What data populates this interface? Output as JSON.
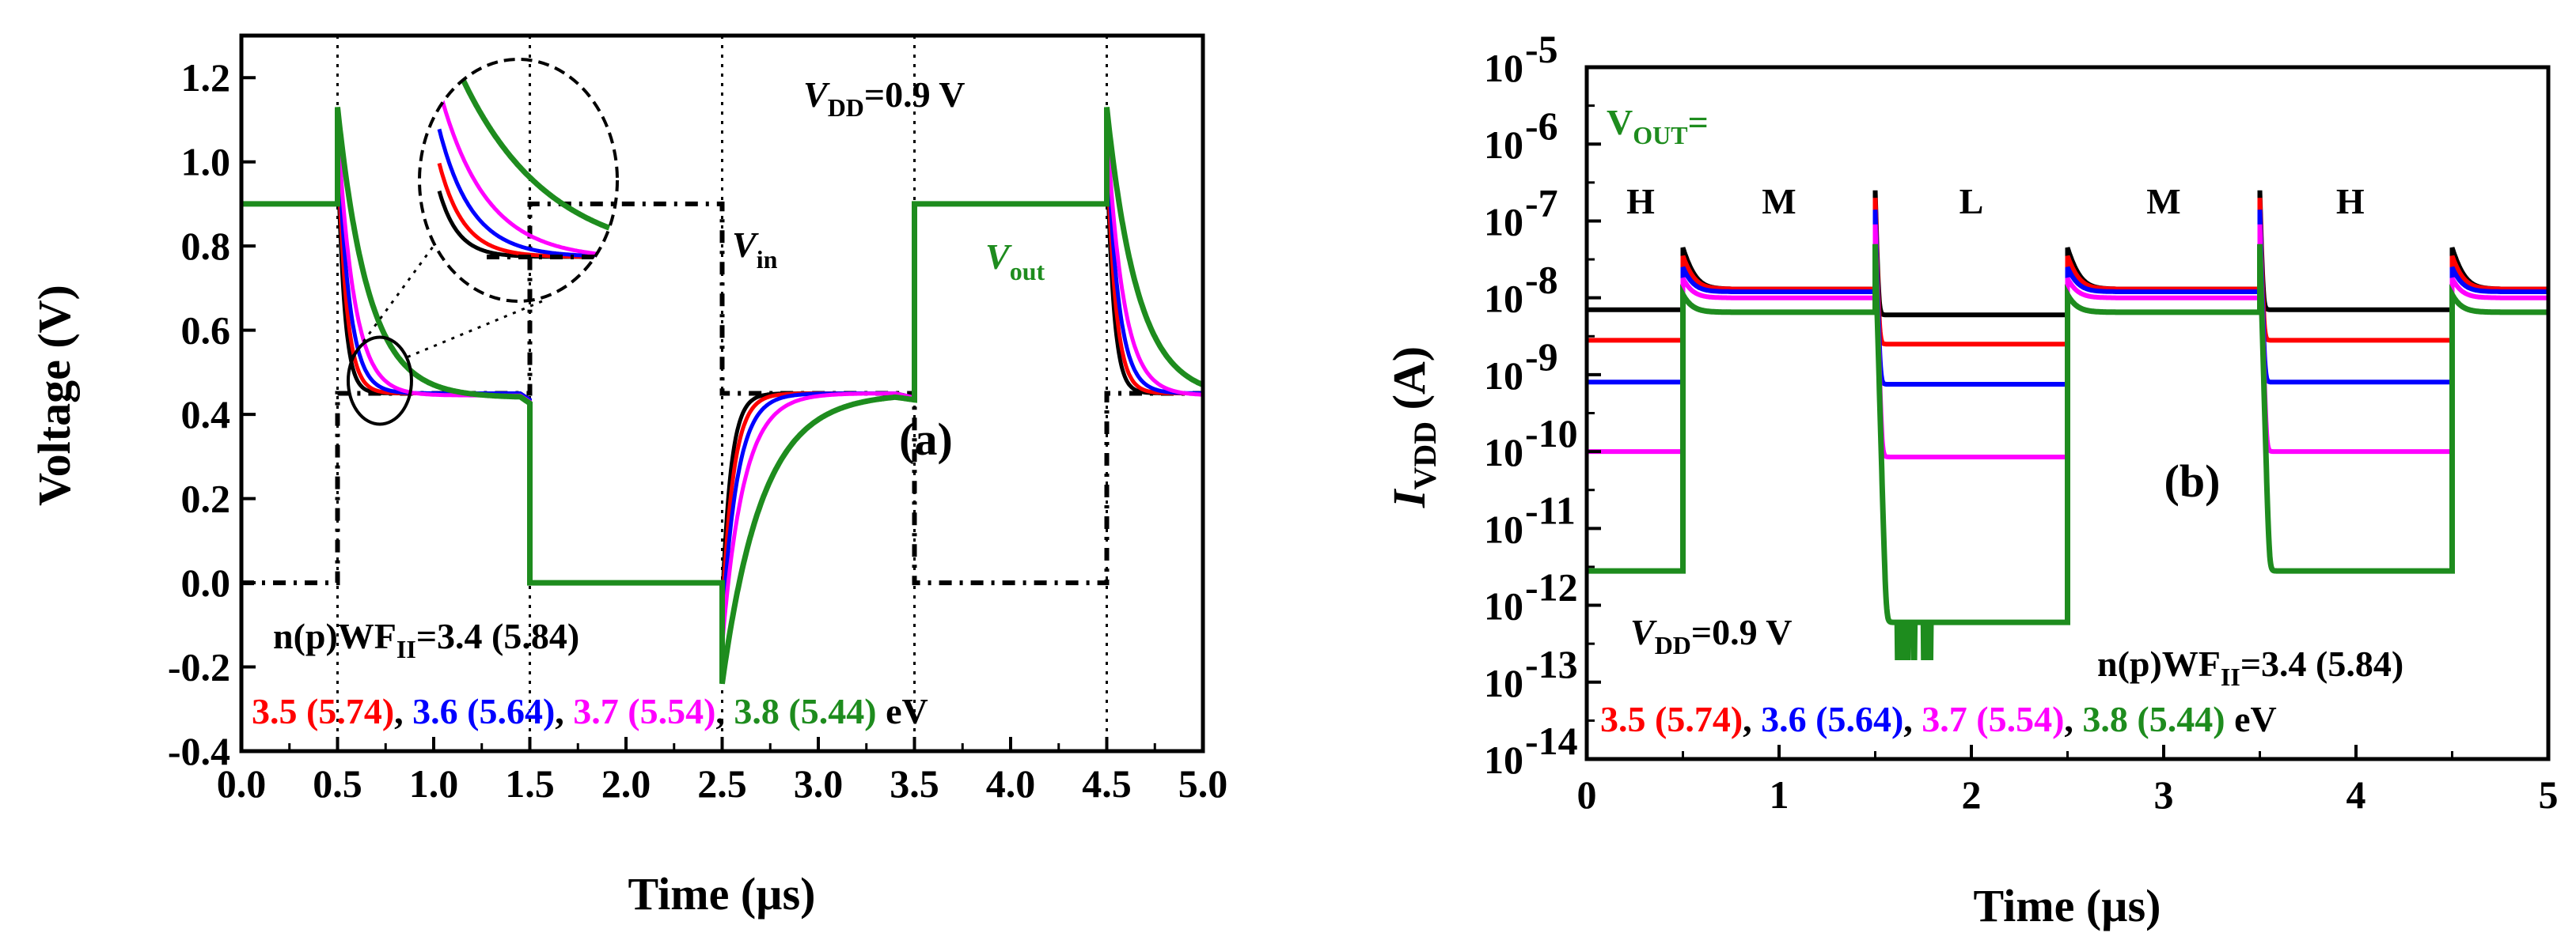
{
  "chart_data": [
    {
      "type": "line",
      "panel_label": "(a)",
      "xlabel": "Time (µs)",
      "ylabel": "Voltage (V)",
      "xlim": [
        0.0,
        5.0
      ],
      "ylim": [
        -0.4,
        1.3
      ],
      "x_ticks": [
        "0.0",
        "0.5",
        "1.0",
        "1.5",
        "2.0",
        "2.5",
        "3.0",
        "3.5",
        "4.0",
        "4.5",
        "5.0"
      ],
      "y_ticks": [
        "-0.4",
        "-0.2",
        "0.0",
        "0.2",
        "0.4",
        "0.6",
        "0.8",
        "1.0",
        "1.2"
      ],
      "annotations": {
        "vdd_main": "V",
        "vdd_sub": "DD",
        "vdd_rest": "=0.9 V",
        "vin_main": "V",
        "vin_sub": "in",
        "vout_main": "V",
        "vout_sub": "out",
        "wf_main": "n(p)WF",
        "wf_sub": "II",
        "wf_rest": "=3.4 (5.84)",
        "legend_red": "3.5 (5.74)",
        "sep1": ", ",
        "legend_blue": "3.6 (5.64)",
        "sep2": ", ",
        "legend_magenta": "3.7 (5.54)",
        "sep3": ", ",
        "legend_green": "3.8 (5.44)",
        "unit": " eV"
      },
      "vin": {
        "name": "Vin",
        "x": [
          0.0,
          0.5,
          0.5,
          1.5,
          1.5,
          2.5,
          2.5,
          3.5,
          3.5,
          4.5,
          4.5,
          5.0
        ],
        "y": [
          0.0,
          0.0,
          0.45,
          0.45,
          0.9,
          0.9,
          0.45,
          0.45,
          0.0,
          0.0,
          0.45,
          0.45
        ]
      },
      "vout_series": [
        {
          "name": "3.4 (5.84)",
          "color": "#000000",
          "peak": 1.03,
          "tau": 0.035,
          "final": 0.45,
          "min": -0.05
        },
        {
          "name": "3.5 (5.74)",
          "color": "#ff0000",
          "peak": 1.05,
          "tau": 0.045,
          "final": 0.45,
          "min": -0.08
        },
        {
          "name": "3.6 (5.64)",
          "color": "#0000ff",
          "peak": 1.07,
          "tau": 0.06,
          "final": 0.45,
          "min": -0.11
        },
        {
          "name": "3.7 (5.54)",
          "color": "#ff00ff",
          "peak": 1.09,
          "tau": 0.085,
          "final": 0.445,
          "min": -0.15
        },
        {
          "name": "3.8 (5.44)",
          "color": "#1e8c1e",
          "peak": 1.13,
          "tau": 0.16,
          "final": 0.44,
          "min": -0.24
        }
      ],
      "vdd": 0.9
    },
    {
      "type": "line",
      "panel_label": "(b)",
      "xlabel": "Time (µs)",
      "ylabel_main": "I",
      "ylabel_sub": "VDD",
      "ylabel_rest": " (A)",
      "yscale": "log",
      "xlim": [
        0,
        5
      ],
      "ylim_exp": [
        -14,
        -5
      ],
      "x_ticks": [
        "0",
        "1",
        "2",
        "3",
        "4",
        "5"
      ],
      "y_tick_base": "10",
      "y_tick_exps": [
        "-14",
        "-13",
        "-12",
        "-11",
        "-10",
        "-9",
        "-8",
        "-7",
        "-6",
        "-5"
      ],
      "annotations": {
        "vout_main": "V",
        "vout_sub": "OUT",
        "vout_rest": "=",
        "states": [
          "H",
          "M",
          "L",
          "M",
          "H"
        ],
        "vdd_main": "V",
        "vdd_sub": "DD",
        "vdd_rest": "=0.9 V",
        "wf_main": "n(p)WF",
        "wf_sub": "II",
        "wf_rest": "=3.4 (5.84)",
        "legend_red": "3.5 (5.74)",
        "sep1": ", ",
        "legend_blue": "3.6 (5.64)",
        "sep2": ", ",
        "legend_magenta": "3.7 (5.54)",
        "sep3": ", ",
        "legend_green": "3.8 (5.44)",
        "unit": " eV"
      },
      "segments": [
        {
          "state": "H",
          "t0": 0.0,
          "t1": 0.5
        },
        {
          "state": "M",
          "t0": 0.5,
          "t1": 1.5
        },
        {
          "state": "L",
          "t0": 1.5,
          "t1": 2.5
        },
        {
          "state": "M",
          "t0": 2.5,
          "t1": 3.5
        },
        {
          "state": "H",
          "t0": 3.5,
          "t1": 4.5
        },
        {
          "state": "M",
          "t0": 4.5,
          "t1": 5.0
        }
      ],
      "series": [
        {
          "name": "3.4 (5.84)",
          "color": "#000000",
          "H": 7e-09,
          "M": 1.3e-08,
          "L": 6e-09,
          "spike": 2.5e-07,
          "bump": 4.5e-08
        },
        {
          "name": "3.5 (5.74)",
          "color": "#ff0000",
          "H": 2.8e-09,
          "M": 1.3e-08,
          "L": 2.5e-09,
          "spike": 2e-07,
          "bump": 3.5e-08
        },
        {
          "name": "3.6 (5.64)",
          "color": "#0000ff",
          "H": 8e-10,
          "M": 1.2e-08,
          "L": 7.5e-10,
          "spike": 1.4e-07,
          "bump": 2.5e-08
        },
        {
          "name": "3.7 (5.54)",
          "color": "#ff00ff",
          "H": 1e-10,
          "M": 1e-08,
          "L": 8.5e-11,
          "spike": 9e-08,
          "bump": 1.8e-08
        },
        {
          "name": "3.8 (5.44)",
          "color": "#1e8c1e",
          "H": 2.8e-12,
          "M": 6.5e-09,
          "L": 6e-13,
          "spike": 5e-08,
          "bump": 1.1e-08
        }
      ]
    }
  ]
}
